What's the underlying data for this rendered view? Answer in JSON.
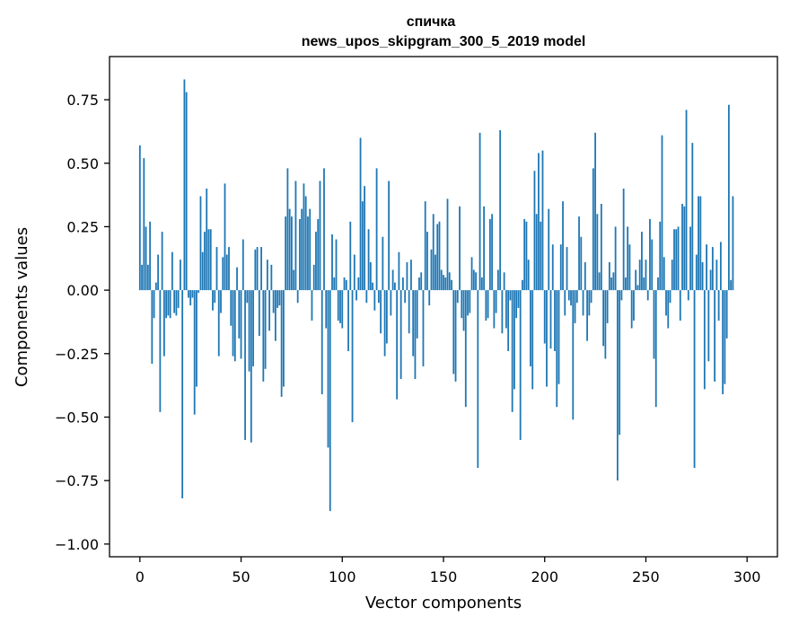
{
  "chart_data": {
    "type": "bar",
    "title": "спичка",
    "subtitle": "news_upos_skipgram_300_5_2019 model",
    "xlabel": "Vector components",
    "ylabel": "Components values",
    "xlim": [
      -15,
      315
    ],
    "ylim": [
      -1.05,
      0.92
    ],
    "xticks": [
      0,
      50,
      100,
      150,
      200,
      250,
      300
    ],
    "xtick_labels": [
      "0",
      "50",
      "100",
      "150",
      "200",
      "250",
      "300"
    ],
    "yticks": [
      -1.0,
      -0.75,
      -0.5,
      -0.25,
      0.0,
      0.25,
      0.5,
      0.75
    ],
    "ytick_labels": [
      "−1.00",
      "−0.75",
      "−0.50",
      "−0.25",
      "0.00",
      "0.25",
      "0.50",
      "0.75"
    ],
    "bar_color": "#1f77b4",
    "values": [
      0.57,
      0.1,
      0.52,
      0.25,
      0.1,
      0.27,
      -0.29,
      -0.11,
      0.03,
      0.14,
      -0.48,
      0.23,
      -0.26,
      -0.11,
      -0.1,
      -0.11,
      0.15,
      -0.09,
      -0.1,
      -0.07,
      0.12,
      -0.82,
      0.83,
      0.78,
      -0.03,
      -0.06,
      -0.03,
      -0.49,
      -0.38,
      -0.01,
      0.37,
      0.15,
      0.23,
      0.4,
      0.24,
      0.24,
      -0.08,
      -0.05,
      0.17,
      -0.26,
      -0.09,
      0.13,
      0.42,
      0.14,
      0.17,
      -0.14,
      -0.26,
      -0.28,
      0.09,
      -0.19,
      -0.27,
      0.2,
      -0.59,
      -0.05,
      -0.32,
      -0.6,
      -0.3,
      0.16,
      0.17,
      -0.18,
      0.17,
      -0.36,
      -0.31,
      0.12,
      -0.16,
      0.1,
      -0.09,
      -0.2,
      -0.07,
      -0.06,
      -0.42,
      -0.38,
      0.29,
      0.48,
      0.32,
      0.29,
      0.08,
      0.43,
      -0.05,
      0.28,
      0.32,
      0.42,
      0.37,
      0.29,
      0.32,
      -0.12,
      0.1,
      0.23,
      0.28,
      0.43,
      -0.41,
      0.48,
      -0.15,
      -0.62,
      -0.87,
      0.22,
      0.05,
      0.2,
      -0.12,
      -0.13,
      -0.15,
      0.05,
      0.04,
      -0.24,
      0.27,
      -0.52,
      0.14,
      -0.04,
      0.05,
      0.6,
      0.35,
      0.41,
      -0.05,
      0.24,
      0.11,
      0.03,
      -0.08,
      0.48,
      -0.05,
      -0.17,
      0.21,
      -0.26,
      -0.21,
      0.43,
      -0.1,
      0.08,
      0.03,
      -0.43,
      0.15,
      -0.35,
      0.05,
      -0.05,
      0.11,
      -0.17,
      0.12,
      -0.26,
      -0.35,
      -0.19,
      0.05,
      0.07,
      -0.3,
      0.35,
      0.23,
      -0.06,
      0.16,
      0.3,
      0.14,
      0.26,
      0.27,
      0.08,
      0.06,
      0.05,
      0.36,
      0.07,
      0.04,
      -0.33,
      -0.36,
      -0.05,
      0.33,
      -0.11,
      -0.16,
      -0.46,
      -0.1,
      -0.09,
      0.13,
      0.08,
      0.07,
      -0.7,
      0.62,
      0.05,
      0.33,
      -0.12,
      -0.11,
      0.28,
      0.3,
      -0.15,
      -0.09,
      0.08,
      0.63,
      -0.17,
      0.07,
      -0.15,
      -0.24,
      -0.04,
      -0.48,
      -0.39,
      -0.11,
      -0.07,
      -0.59,
      0.04,
      0.28,
      0.27,
      0.12,
      -0.3,
      -0.39,
      0.47,
      0.3,
      0.54,
      0.27,
      0.55,
      -0.21,
      -0.38,
      0.32,
      -0.23,
      0.18,
      -0.24,
      -0.46,
      -0.37,
      0.18,
      0.35,
      -0.1,
      0.17,
      -0.04,
      -0.06,
      -0.51,
      -0.13,
      -0.05,
      0.29,
      0.21,
      -0.1,
      0.11,
      -0.2,
      -0.1,
      -0.05,
      0.48,
      0.62,
      0.3,
      0.07,
      0.34,
      -0.22,
      -0.27,
      -0.13,
      0.11,
      0.05,
      0.07,
      0.25,
      -0.75,
      -0.57,
      -0.04,
      0.4,
      0.05,
      0.25,
      0.18,
      -0.15,
      -0.12,
      0.08,
      0.02,
      0.12,
      0.23,
      0.05,
      0.12,
      -0.04,
      0.28,
      0.2,
      -0.27,
      -0.46,
      0.05,
      0.27,
      0.61,
      0.13,
      -0.1,
      -0.15,
      -0.05,
      0.12,
      0.24,
      0.24,
      0.25,
      -0.12,
      0.34,
      0.33,
      0.71,
      -0.04,
      0.25,
      0.58,
      -0.7,
      0.14,
      0.37,
      0.37,
      0.11,
      -0.39,
      0.18,
      -0.28,
      0.08,
      0.17,
      -0.36,
      0.12,
      -0.12,
      0.19,
      -0.41,
      -0.37,
      -0.19,
      0.73,
      0.04,
      0.37
    ]
  }
}
